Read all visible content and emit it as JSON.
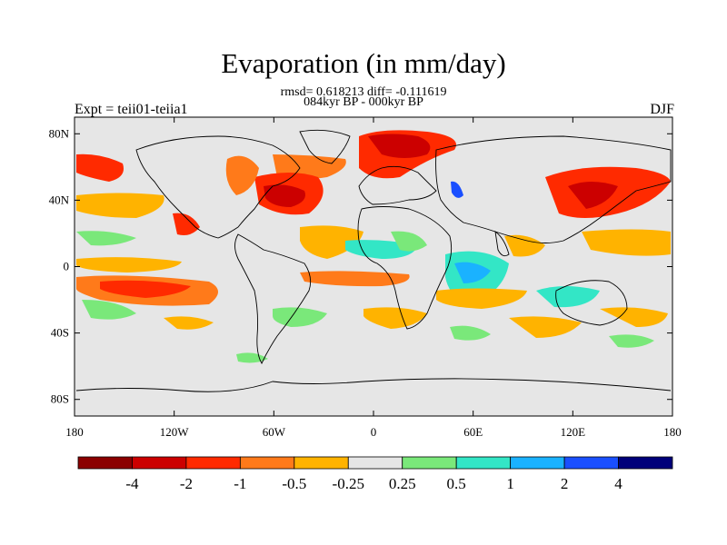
{
  "header": {
    "title": "Evaporation (in mm/day)",
    "stats": "rmsd= 0.618213 diff= -0.111619",
    "period": "084kyr BP - 000kyr BP",
    "experiment": "Expt = teii01-teiia1",
    "season": "DJF"
  },
  "axes": {
    "lon_ticks": [
      "180",
      "120W",
      "60W",
      "0",
      "60E",
      "120E",
      "180"
    ],
    "lat_ticks": [
      "80N",
      "40N",
      "0",
      "40S",
      "80S"
    ]
  },
  "colorbar": {
    "labels": [
      "-4",
      "-2",
      "-1",
      "-0.5",
      "-0.25",
      "0.25",
      "0.5",
      "1",
      "2",
      "4"
    ],
    "colors": [
      "#8b0000",
      "#cc0000",
      "#ff2a00",
      "#ff7a1a",
      "#ffb300",
      "#e6e6e6",
      "#7ae87a",
      "#33e6c6",
      "#1ab2ff",
      "#1a4fff",
      "#00007a"
    ]
  },
  "colors": {
    "land_background": "#e6e6e6",
    "coastline": "#000000"
  }
}
